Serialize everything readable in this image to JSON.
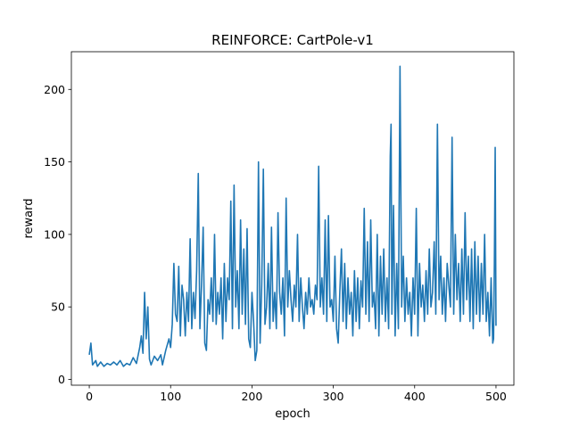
{
  "chart_data": {
    "type": "line",
    "title": "REINFORCE: CartPole-v1",
    "xlabel": "epoch",
    "ylabel": "reward",
    "xlim": [
      -22,
      522
    ],
    "ylim": [
      -4,
      226
    ],
    "xticks": [
      0,
      100,
      200,
      300,
      400,
      500
    ],
    "yticks": [
      0,
      50,
      100,
      150,
      200
    ],
    "grid": false,
    "line_color": "#1f77b4",
    "series": [
      {
        "points": [
          [
            0,
            17
          ],
          [
            2,
            25
          ],
          [
            4,
            10
          ],
          [
            8,
            13
          ],
          [
            10,
            9
          ],
          [
            14,
            12
          ],
          [
            18,
            9
          ],
          [
            22,
            11
          ],
          [
            26,
            10
          ],
          [
            30,
            12
          ],
          [
            34,
            10
          ],
          [
            38,
            13
          ],
          [
            42,
            9
          ],
          [
            46,
            11
          ],
          [
            50,
            10
          ],
          [
            54,
            15
          ],
          [
            58,
            11
          ],
          [
            62,
            22
          ],
          [
            64,
            30
          ],
          [
            66,
            18
          ],
          [
            68,
            60
          ],
          [
            70,
            28
          ],
          [
            72,
            50
          ],
          [
            74,
            14
          ],
          [
            76,
            10
          ],
          [
            80,
            16
          ],
          [
            84,
            13
          ],
          [
            88,
            17
          ],
          [
            90,
            10
          ],
          [
            94,
            20
          ],
          [
            98,
            28
          ],
          [
            100,
            22
          ],
          [
            102,
            38
          ],
          [
            104,
            80
          ],
          [
            106,
            45
          ],
          [
            108,
            40
          ],
          [
            110,
            78
          ],
          [
            112,
            30
          ],
          [
            114,
            65
          ],
          [
            116,
            55
          ],
          [
            118,
            30
          ],
          [
            120,
            60
          ],
          [
            122,
            40
          ],
          [
            124,
            97
          ],
          [
            126,
            35
          ],
          [
            128,
            60
          ],
          [
            130,
            42
          ],
          [
            132,
            75
          ],
          [
            134,
            142
          ],
          [
            136,
            35
          ],
          [
            138,
            65
          ],
          [
            140,
            105
          ],
          [
            142,
            25
          ],
          [
            144,
            20
          ],
          [
            146,
            55
          ],
          [
            148,
            45
          ],
          [
            150,
            70
          ],
          [
            152,
            40
          ],
          [
            154,
            100
          ],
          [
            156,
            38
          ],
          [
            158,
            60
          ],
          [
            160,
            45
          ],
          [
            162,
            70
          ],
          [
            164,
            28
          ],
          [
            166,
            80
          ],
          [
            168,
            40
          ],
          [
            170,
            70
          ],
          [
            172,
            55
          ],
          [
            174,
            123
          ],
          [
            176,
            35
          ],
          [
            178,
            134
          ],
          [
            180,
            50
          ],
          [
            182,
            75
          ],
          [
            184,
            35
          ],
          [
            186,
            110
          ],
          [
            188,
            45
          ],
          [
            190,
            90
          ],
          [
            192,
            38
          ],
          [
            194,
            104
          ],
          [
            196,
            28
          ],
          [
            198,
            22
          ],
          [
            200,
            60
          ],
          [
            202,
            40
          ],
          [
            204,
            13
          ],
          [
            206,
            20
          ],
          [
            208,
            150
          ],
          [
            210,
            25
          ],
          [
            212,
            65
          ],
          [
            214,
            145
          ],
          [
            216,
            38
          ],
          [
            218,
            50
          ],
          [
            220,
            80
          ],
          [
            222,
            35
          ],
          [
            224,
            105
          ],
          [
            226,
            40
          ],
          [
            228,
            60
          ],
          [
            230,
            35
          ],
          [
            232,
            115
          ],
          [
            234,
            60
          ],
          [
            236,
            45
          ],
          [
            238,
            70
          ],
          [
            240,
            30
          ],
          [
            242,
            125
          ],
          [
            244,
            50
          ],
          [
            246,
            75
          ],
          [
            248,
            55
          ],
          [
            250,
            40
          ],
          [
            252,
            65
          ],
          [
            254,
            50
          ],
          [
            256,
            100
          ],
          [
            258,
            40
          ],
          [
            260,
            70
          ],
          [
            262,
            50
          ],
          [
            264,
            35
          ],
          [
            266,
            60
          ],
          [
            268,
            45
          ],
          [
            270,
            70
          ],
          [
            272,
            50
          ],
          [
            274,
            55
          ],
          [
            276,
            45
          ],
          [
            278,
            65
          ],
          [
            280,
            55
          ],
          [
            282,
            147
          ],
          [
            284,
            50
          ],
          [
            286,
            70
          ],
          [
            288,
            45
          ],
          [
            290,
            110
          ],
          [
            292,
            40
          ],
          [
            294,
            113
          ],
          [
            296,
            50
          ],
          [
            298,
            55
          ],
          [
            300,
            40
          ],
          [
            302,
            85
          ],
          [
            304,
            35
          ],
          [
            306,
            25
          ],
          [
            308,
            60
          ],
          [
            310,
            90
          ],
          [
            312,
            40
          ],
          [
            314,
            80
          ],
          [
            316,
            35
          ],
          [
            318,
            70
          ],
          [
            320,
            45
          ],
          [
            322,
            60
          ],
          [
            324,
            30
          ],
          [
            326,
            75
          ],
          [
            328,
            40
          ],
          [
            330,
            70
          ],
          [
            332,
            35
          ],
          [
            334,
            68
          ],
          [
            336,
            50
          ],
          [
            338,
            118
          ],
          [
            340,
            45
          ],
          [
            342,
            95
          ],
          [
            344,
            40
          ],
          [
            346,
            110
          ],
          [
            348,
            50
          ],
          [
            350,
            60
          ],
          [
            352,
            35
          ],
          [
            354,
            100
          ],
          [
            356,
            30
          ],
          [
            358,
            85
          ],
          [
            360,
            45
          ],
          [
            362,
            90
          ],
          [
            364,
            40
          ],
          [
            366,
            70
          ],
          [
            368,
            35
          ],
          [
            370,
            154
          ],
          [
            371,
            176
          ],
          [
            372,
            45
          ],
          [
            374,
            120
          ],
          [
            376,
            30
          ],
          [
            378,
            80
          ],
          [
            380,
            35
          ],
          [
            382,
            216
          ],
          [
            384,
            50
          ],
          [
            386,
            85
          ],
          [
            388,
            40
          ],
          [
            390,
            70
          ],
          [
            392,
            45
          ],
          [
            394,
            60
          ],
          [
            396,
            30
          ],
          [
            398,
            70
          ],
          [
            400,
            45
          ],
          [
            402,
            118
          ],
          [
            404,
            30
          ],
          [
            406,
            80
          ],
          [
            408,
            50
          ],
          [
            410,
            65
          ],
          [
            412,
            40
          ],
          [
            414,
            75
          ],
          [
            416,
            45
          ],
          [
            418,
            90
          ],
          [
            420,
            50
          ],
          [
            422,
            60
          ],
          [
            424,
            95
          ],
          [
            426,
            45
          ],
          [
            428,
            176
          ],
          [
            430,
            55
          ],
          [
            432,
            85
          ],
          [
            434,
            45
          ],
          [
            436,
            70
          ],
          [
            438,
            40
          ],
          [
            440,
            80
          ],
          [
            442,
            65
          ],
          [
            444,
            50
          ],
          [
            446,
            167
          ],
          [
            448,
            45
          ],
          [
            450,
            100
          ],
          [
            452,
            55
          ],
          [
            454,
            80
          ],
          [
            456,
            40
          ],
          [
            458,
            90
          ],
          [
            460,
            45
          ],
          [
            462,
            115
          ],
          [
            464,
            55
          ],
          [
            466,
            85
          ],
          [
            468,
            40
          ],
          [
            470,
            90
          ],
          [
            472,
            35
          ],
          [
            474,
            95
          ],
          [
            476,
            45
          ],
          [
            478,
            85
          ],
          [
            480,
            40
          ],
          [
            482,
            80
          ],
          [
            484,
            45
          ],
          [
            486,
            100
          ],
          [
            488,
            40
          ],
          [
            490,
            60
          ],
          [
            492,
            30
          ],
          [
            494,
            70
          ],
          [
            496,
            25
          ],
          [
            497,
            28
          ],
          [
            498,
            80
          ],
          [
            499,
            160
          ],
          [
            500,
            37
          ]
        ]
      }
    ]
  }
}
